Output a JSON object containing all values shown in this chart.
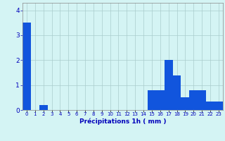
{
  "categories": [
    0,
    1,
    2,
    3,
    4,
    5,
    6,
    7,
    8,
    9,
    10,
    11,
    12,
    13,
    14,
    15,
    16,
    17,
    18,
    19,
    20,
    21,
    22,
    23
  ],
  "values": [
    3.5,
    0.0,
    0.2,
    0.0,
    0.0,
    0.0,
    0.0,
    0.0,
    0.0,
    0.0,
    0.0,
    0.0,
    0.0,
    0.0,
    0.0,
    0.8,
    0.8,
    2.0,
    1.4,
    0.5,
    0.8,
    0.8,
    0.35,
    0.35
  ],
  "bar_color": "#1155dd",
  "background_color": "#d4f4f4",
  "grid_color": "#aacccc",
  "xlabel": "Précipitations 1h ( mm )",
  "xlabel_color": "#0000bb",
  "tick_color": "#0000bb",
  "ylim": [
    0,
    4.3
  ],
  "yticks": [
    0,
    1,
    2,
    3,
    4
  ],
  "bar_width": 1.0
}
